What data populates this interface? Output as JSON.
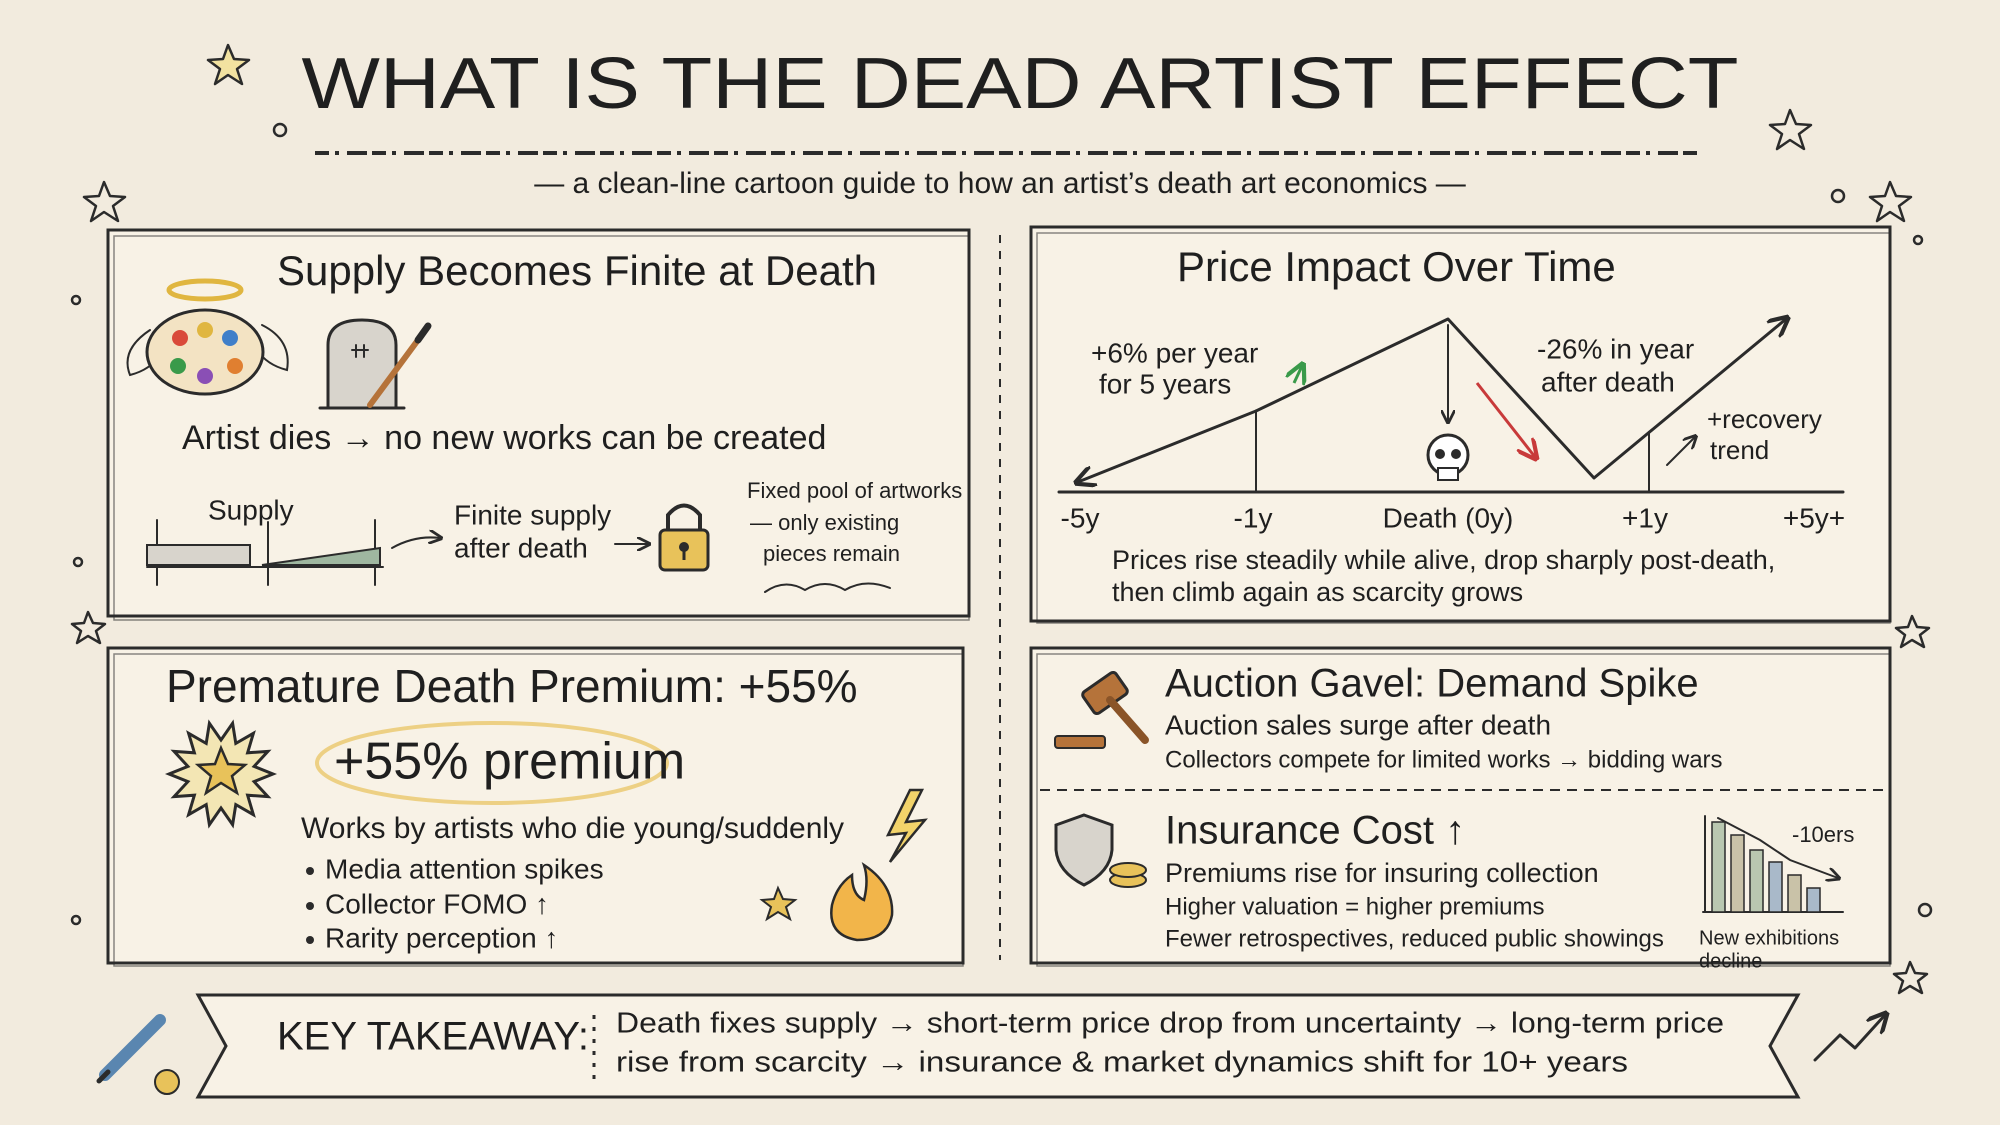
{
  "header": {
    "title": "WHAT IS THE DEAD ARTIST EFFECT",
    "subtitle": "— a clean-line cartoon guide to how an artist’s death art economics —"
  },
  "supply_panel": {
    "title": "Supply Becomes Finite at Death",
    "statement": "Artist dies → no new works can be created",
    "supply_label": "Supply",
    "finite_label": [
      "Finite supply",
      "after death"
    ],
    "pool_note": [
      "Fixed pool of artworks",
      "— only existing",
      "pieces remain"
    ]
  },
  "price_panel": {
    "title": "Price Impact Over Time",
    "growth_note": [
      "+6% per year",
      "for 5 years"
    ],
    "drop_note": [
      "-26% in year",
      "after death"
    ],
    "recovery_note": [
      "+recovery",
      "trend"
    ],
    "axis_labels": [
      "-5y",
      "-1y",
      "Death (0y)",
      "+1y",
      "+5y+"
    ],
    "caption": [
      "Prices rise steadily while alive, drop sharply post-death,",
      "then climb again as scarcity grows"
    ]
  },
  "premium_panel": {
    "title": "Premature Death Premium: +55%",
    "badge": "+55% premium",
    "lead": "Works by artists who die young/suddenly",
    "bullets": [
      "Media attention spikes",
      "Collector FOMO ↑",
      "Rarity perception ↑"
    ]
  },
  "auction_panel": {
    "title": "Auction Gavel: Demand Spike",
    "lines": [
      "Auction sales surge after death",
      "Collectors compete for limited works → bidding wars"
    ]
  },
  "insurance_panel": {
    "title": "Insurance Cost ↑",
    "lines": [
      "Premiums rise for insuring collection",
      "Higher valuation = higher premiums",
      "Fewer retrospectives, reduced public showings"
    ],
    "chart_label": "-10ers",
    "chart_caption": [
      "New exhibitions",
      "decline"
    ]
  },
  "takeaway": {
    "label": "KEY TAKEAWAY:",
    "lines": [
      "Death fixes supply → short-term price drop from uncertainty → long-term price",
      "rise from scarcity → insurance & market dynamics shift for 10+ years"
    ]
  }
}
